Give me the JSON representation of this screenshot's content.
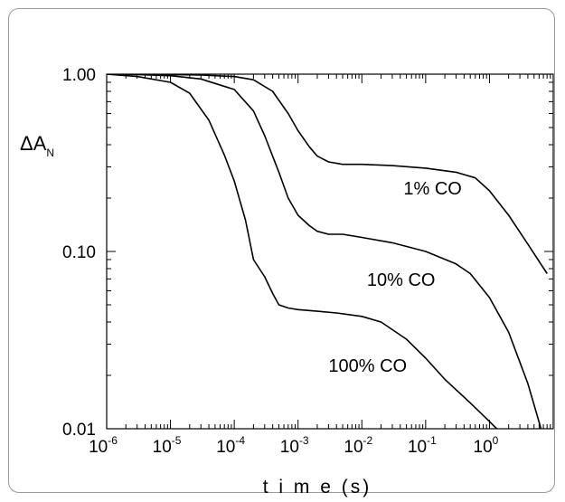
{
  "chart_data": {
    "type": "line",
    "xscale": "log",
    "yscale": "log",
    "xlabel": "t i m e (s)",
    "ylabel": "ΔA",
    "ylabel_subscript": "N",
    "xlim": [
      1e-06,
      10
    ],
    "ylim": [
      0.01,
      1
    ],
    "x_ticks": [
      {
        "base": "10",
        "exp": "-6"
      },
      {
        "base": "10",
        "exp": "-5"
      },
      {
        "base": "10",
        "exp": "-4"
      },
      {
        "base": "10",
        "exp": "-3"
      },
      {
        "base": "10",
        "exp": "-2"
      },
      {
        "base": "10",
        "exp": "-1"
      },
      {
        "base": "10",
        "exp": "0"
      }
    ],
    "x_tick_values": [
      1e-06,
      1e-05,
      0.0001,
      0.001,
      0.01,
      0.1,
      1
    ],
    "y_ticks": [
      "1.00",
      "0.10",
      "0.01"
    ],
    "y_tick_values": [
      1,
      0.1,
      0.01
    ],
    "grid": false,
    "series": [
      {
        "annotation": "1% CO",
        "x": [
          1e-06,
          3e-06,
          1e-05,
          3e-05,
          0.0001,
          0.0002,
          0.0004,
          0.0007,
          0.001,
          0.0015,
          0.002,
          0.003,
          0.005,
          0.01,
          0.03,
          0.1,
          0.3,
          0.6,
          1,
          2,
          4,
          8
        ],
        "y": [
          1.0,
          1.0,
          0.995,
          0.99,
          0.97,
          0.93,
          0.8,
          0.6,
          0.48,
          0.39,
          0.345,
          0.32,
          0.31,
          0.31,
          0.305,
          0.295,
          0.28,
          0.26,
          0.22,
          0.16,
          0.11,
          0.075
        ]
      },
      {
        "annotation": "10% CO",
        "x": [
          1e-06,
          3e-06,
          1e-05,
          3e-05,
          0.0001,
          0.0002,
          0.0003,
          0.0005,
          0.0007,
          0.001,
          0.0015,
          0.002,
          0.003,
          0.005,
          0.01,
          0.03,
          0.1,
          0.3,
          0.5,
          1,
          2,
          4,
          7
        ],
        "y": [
          1.0,
          0.995,
          0.98,
          0.94,
          0.82,
          0.62,
          0.45,
          0.28,
          0.2,
          0.16,
          0.14,
          0.13,
          0.125,
          0.125,
          0.12,
          0.112,
          0.1,
          0.085,
          0.075,
          0.055,
          0.035,
          0.018,
          0.009
        ]
      },
      {
        "annotation": "100% CO",
        "x": [
          1e-06,
          3e-06,
          1e-05,
          2e-05,
          4e-05,
          7e-05,
          0.0001,
          0.00015,
          0.0002,
          0.0003,
          0.0004,
          0.0005,
          0.0007,
          0.001,
          0.002,
          0.004,
          0.01,
          0.02,
          0.05,
          0.1,
          0.2,
          0.5,
          1,
          1.5
        ],
        "y": [
          1.0,
          0.97,
          0.9,
          0.78,
          0.55,
          0.35,
          0.25,
          0.15,
          0.09,
          0.072,
          0.058,
          0.05,
          0.048,
          0.047,
          0.046,
          0.045,
          0.043,
          0.04,
          0.032,
          0.025,
          0.019,
          0.014,
          0.011,
          0.0095
        ]
      }
    ]
  }
}
